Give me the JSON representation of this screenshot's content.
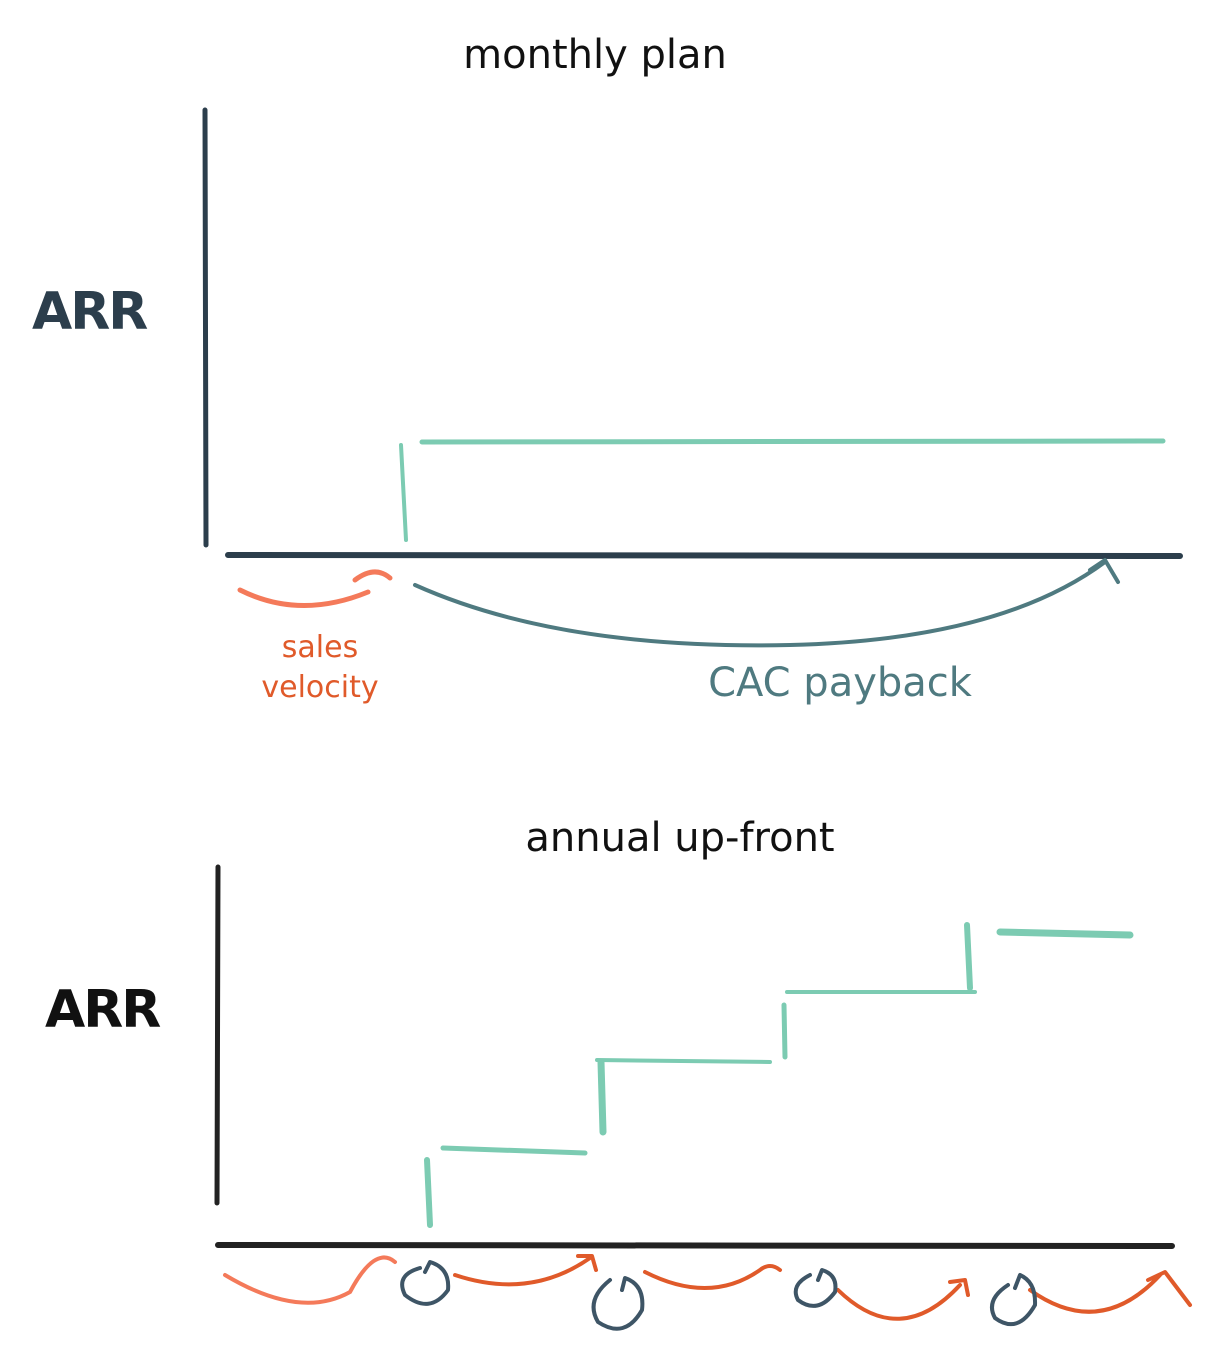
{
  "charts": [
    {
      "title": "monthly plan",
      "y_label": "ARR",
      "annotations": [
        "sales velocity",
        "CAC payback"
      ]
    },
    {
      "title": "annual up-front",
      "y_label": "ARR"
    }
  ]
}
